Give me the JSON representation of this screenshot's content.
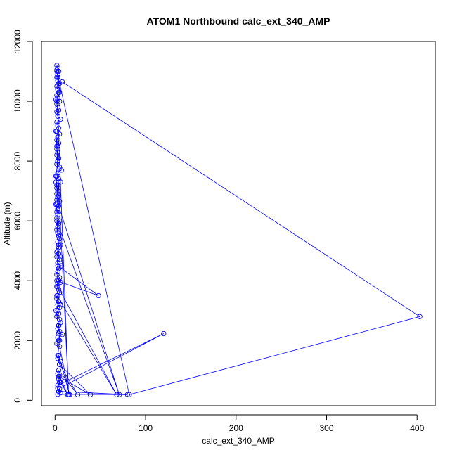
{
  "chart_data": {
    "type": "line",
    "title": "ATOM1 Northbound calc_ext_340_AMP",
    "xlabel": "calc_ext_340_AMP",
    "ylabel": "Altitude (m)",
    "xlim": [
      -15,
      420
    ],
    "ylim": [
      -180,
      12000
    ],
    "x_ticks": [
      0,
      100,
      200,
      300,
      400
    ],
    "y_ticks": [
      0,
      2000,
      4000,
      6000,
      8000,
      10000,
      12000
    ],
    "grid": false,
    "legend": "none",
    "marker": "open-circle",
    "color": "#0000ff",
    "series": [
      {
        "x": [
          2,
          3,
          2,
          4,
          3,
          2,
          3,
          5,
          2,
          3,
          4,
          2,
          3,
          5,
          2,
          1,
          3,
          4,
          2,
          3,
          6,
          2,
          3,
          4,
          2,
          5,
          3,
          2,
          4,
          3,
          2,
          3,
          2,
          4,
          3,
          2,
          5,
          7,
          3,
          2,
          4,
          6,
          3,
          2,
          1,
          3,
          2,
          4,
          3,
          2,
          5,
          3,
          2,
          4,
          3,
          2,
          1,
          3,
          2,
          5,
          4,
          3,
          2,
          3,
          4,
          5,
          3,
          6,
          4,
          3,
          2,
          4,
          6,
          5,
          3,
          7,
          4,
          3,
          2,
          5,
          4,
          6,
          3,
          2,
          4,
          5,
          3,
          2,
          4,
          6,
          5,
          3,
          4,
          2,
          5,
          6,
          4,
          3,
          5,
          4,
          8,
          3,
          4,
          2,
          5,
          16,
          4,
          3,
          6,
          5,
          25,
          4,
          3,
          5,
          14,
          4,
          6,
          3,
          120,
          5,
          4,
          6,
          3,
          80,
          4,
          3,
          5,
          4,
          39,
          5,
          3,
          5,
          4,
          2,
          1,
          3,
          2,
          68,
          3,
          2,
          48,
          3,
          2,
          4,
          3,
          2,
          71,
          4,
          3,
          2,
          1,
          3,
          2,
          1,
          15,
          3,
          2,
          5,
          4,
          3,
          2,
          82,
          403,
          8
        ],
        "y": [
          11200,
          11100,
          11050,
          11000,
          10900,
          10800,
          10700,
          10600,
          10500,
          10400,
          10300,
          10200,
          10100,
          10000,
          9900,
          10050,
          9800,
          9700,
          9650,
          9500,
          9400,
          9300,
          9200,
          9100,
          9000,
          8900,
          8800,
          8700,
          8600,
          8500,
          8400,
          8300,
          8200,
          8100,
          8000,
          7900,
          7800,
          7700,
          7600,
          7500,
          7400,
          7300,
          7200,
          7100,
          7300,
          7000,
          6900,
          6850,
          6800,
          6700,
          6650,
          6600,
          6550,
          6500,
          6400,
          6300,
          6550,
          6200,
          6100,
          6000,
          5900,
          5800,
          5700,
          5600,
          5500,
          5400,
          5300,
          5200,
          5100,
          5000,
          4950,
          4900,
          4800,
          4700,
          4600,
          4500,
          4400,
          4300,
          4200,
          4100,
          4000,
          3950,
          3900,
          3800,
          3700,
          3600,
          3500,
          3400,
          3300,
          3200,
          3100,
          3000,
          2900,
          2800,
          2700,
          2600,
          2500,
          2400,
          2300,
          2250,
          2200,
          2100,
          2000,
          1900,
          1800,
          190,
          1500,
          1400,
          1300,
          1200,
          190,
          1000,
          900,
          800,
          190,
          700,
          600,
          500,
          2230,
          400,
          300,
          250,
          200,
          190,
          300,
          400,
          600,
          800,
          190,
          1200,
          1500,
          2000,
          2500,
          2800,
          3000,
          3200,
          3500,
          190,
          3800,
          4000,
          3500,
          4500,
          4800,
          5200,
          5600,
          6000,
          190,
          6500,
          6800,
          7200,
          7500,
          8000,
          8500,
          9000,
          190,
          9600,
          10000,
          10300,
          10600,
          10800,
          11000,
          190,
          2800,
          10650
        ]
      }
    ]
  }
}
